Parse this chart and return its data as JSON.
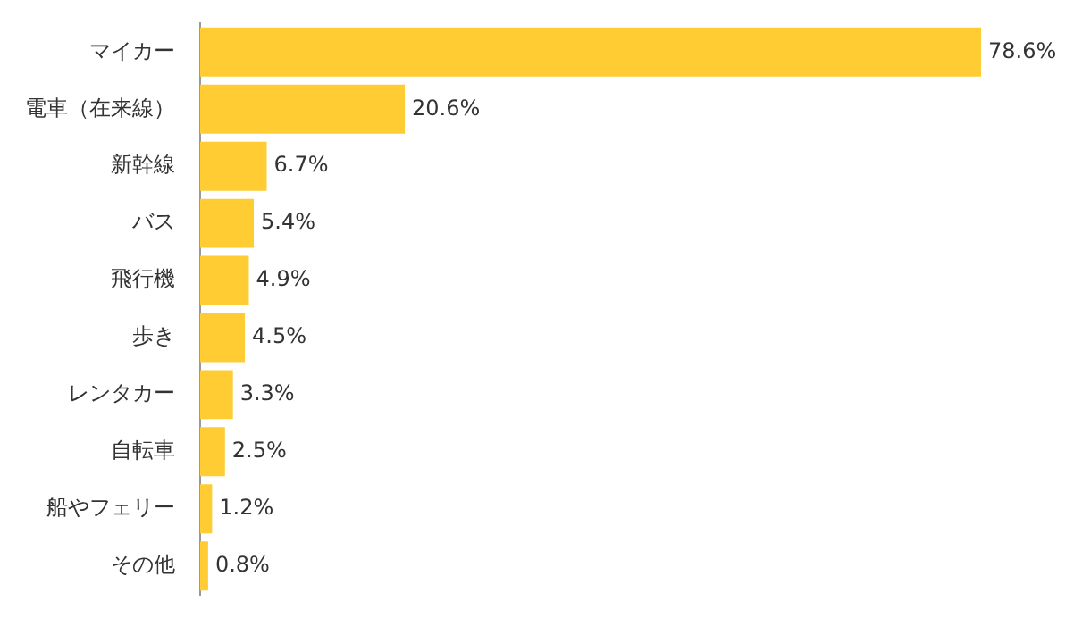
{
  "chart_data": {
    "type": "bar",
    "orientation": "horizontal",
    "categories": [
      "マイカー",
      "電車（在来線）",
      "新幹線",
      "バス",
      "飛行機",
      "歩き",
      "レンタカー",
      "自転車",
      "船やフェリー",
      "その他"
    ],
    "values": [
      78.6,
      20.6,
      6.7,
      5.4,
      4.9,
      4.5,
      3.3,
      2.5,
      1.2,
      0.8
    ],
    "value_labels": [
      "78.6%",
      "20.6%",
      "6.7%",
      "5.4%",
      "4.9%",
      "4.5%",
      "3.3%",
      "2.5%",
      "1.2%",
      "0.8%"
    ],
    "color": "#ffcc33",
    "legend": false
  }
}
